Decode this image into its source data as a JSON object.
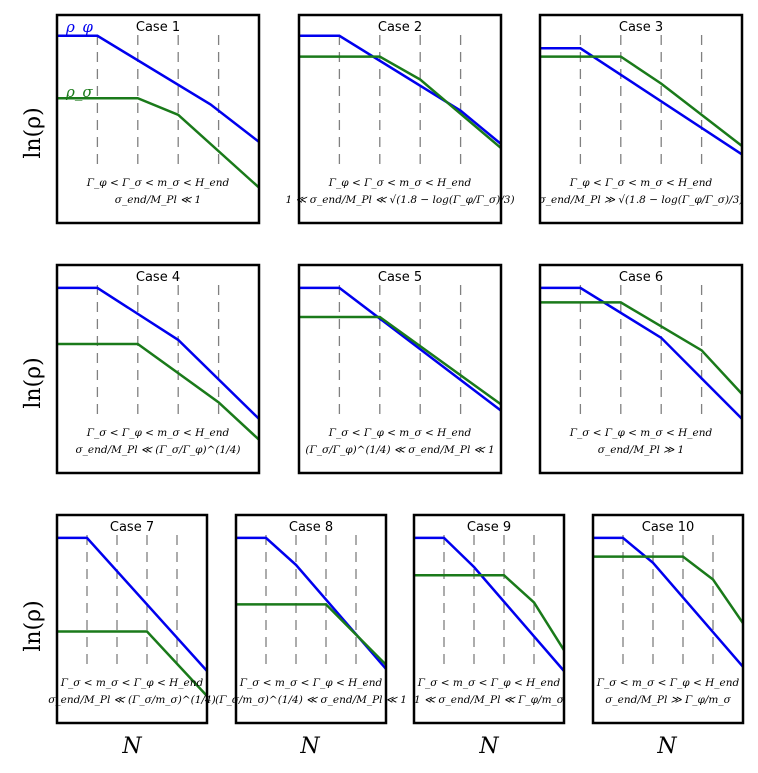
{
  "figure": {
    "y_axis_label": "ln(ρ)",
    "x_axis_label": "N",
    "legend": {
      "phi": "ρ_φ",
      "sigma": "ρ_σ"
    }
  },
  "colors": {
    "phi": "#0000ee",
    "sigma": "#1a7a1a",
    "dash": "#808080"
  },
  "chart_data": [
    {
      "type": "line",
      "title": "Case 1",
      "conditions": [
        "Γ_φ < Γ_σ < m_σ < H_end",
        "σ_end/M_Pl ≪ 1"
      ],
      "series": [
        {
          "name": "ρ_φ",
          "x": [
            0,
            0.2,
            0.76,
            1
          ],
          "y": [
            0.9,
            0.9,
            0.57,
            0.39
          ]
        },
        {
          "name": "ρ_σ",
          "x": [
            0,
            0.4,
            0.6,
            1
          ],
          "y": [
            0.6,
            0.6,
            0.52,
            0.17
          ]
        }
      ]
    },
    {
      "type": "line",
      "title": "Case 2",
      "conditions": [
        "Γ_φ < Γ_σ < m_σ < H_end",
        "1 ≪ σ_end/M_Pl ≪ √(1.8 − log(Γ_φ/Γ_σ)/3)"
      ],
      "series": [
        {
          "name": "ρ_φ",
          "x": [
            0,
            0.2,
            0.8,
            1
          ],
          "y": [
            0.9,
            0.9,
            0.54,
            0.38
          ]
        },
        {
          "name": "ρ_σ",
          "x": [
            0,
            0.4,
            0.6,
            1
          ],
          "y": [
            0.8,
            0.8,
            0.69,
            0.36
          ]
        }
      ]
    },
    {
      "type": "line",
      "title": "Case 3",
      "conditions": [
        "Γ_φ < Γ_σ < m_σ < H_end",
        "σ_end/M_Pl ≫ √(1.8 − log(Γ_φ/Γ_σ)/3)"
      ],
      "series": [
        {
          "name": "ρ_φ",
          "x": [
            0,
            0.2,
            1
          ],
          "y": [
            0.84,
            0.84,
            0.33
          ]
        },
        {
          "name": "ρ_σ",
          "x": [
            0,
            0.4,
            0.6,
            1
          ],
          "y": [
            0.8,
            0.8,
            0.67,
            0.37
          ]
        }
      ]
    },
    {
      "type": "line",
      "title": "Case 4",
      "conditions": [
        "Γ_σ < Γ_φ < m_σ < H_end",
        "σ_end/M_Pl ≪ (Γ_σ/Γ_φ)^(1/4)"
      ],
      "series": [
        {
          "name": "ρ_φ",
          "x": [
            0,
            0.2,
            0.6,
            1
          ],
          "y": [
            0.89,
            0.89,
            0.64,
            0.26
          ]
        },
        {
          "name": "ρ_σ",
          "x": [
            0,
            0.4,
            0.8,
            1
          ],
          "y": [
            0.62,
            0.62,
            0.34,
            0.16
          ]
        }
      ]
    },
    {
      "type": "line",
      "title": "Case 5",
      "conditions": [
        "Γ_σ < Γ_φ < m_σ < H_end",
        "(Γ_σ/Γ_φ)^(1/4) ≪ σ_end/M_Pl ≪ 1"
      ],
      "series": [
        {
          "name": "ρ_φ",
          "x": [
            0,
            0.2,
            1
          ],
          "y": [
            0.89,
            0.89,
            0.3
          ]
        },
        {
          "name": "ρ_σ",
          "x": [
            0,
            0.4,
            1
          ],
          "y": [
            0.75,
            0.75,
            0.33
          ]
        }
      ]
    },
    {
      "type": "line",
      "title": "Case 6",
      "conditions": [
        "Γ_σ < Γ_φ < m_σ < H_end",
        "σ_end/M_Pl ≫ 1"
      ],
      "series": [
        {
          "name": "ρ_φ",
          "x": [
            0,
            0.2,
            0.6,
            1
          ],
          "y": [
            0.89,
            0.89,
            0.65,
            0.26
          ]
        },
        {
          "name": "ρ_σ",
          "x": [
            0,
            0.4,
            0.8,
            1
          ],
          "y": [
            0.82,
            0.82,
            0.59,
            0.38
          ]
        }
      ]
    },
    {
      "type": "line",
      "title": "Case 7",
      "conditions": [
        "Γ_σ < m_σ < Γ_φ < H_end",
        "σ_end/M_Pl ≪ (Γ_σ/m_σ)^(1/4)"
      ],
      "series": [
        {
          "name": "ρ_φ",
          "x": [
            0,
            0.2,
            1
          ],
          "y": [
            0.89,
            0.89,
            0.25
          ]
        },
        {
          "name": "ρ_σ",
          "x": [
            0,
            0.6,
            1
          ],
          "y": [
            0.44,
            0.44,
            0.13
          ]
        }
      ]
    },
    {
      "type": "line",
      "title": "Case 8",
      "conditions": [
        "Γ_σ < m_σ < Γ_φ < H_end",
        "(Γ_σ/m_σ)^(1/4) ≪ σ_end/M_Pl ≪ 1"
      ],
      "series": [
        {
          "name": "ρ_φ",
          "x": [
            0,
            0.2,
            0.4,
            1
          ],
          "y": [
            0.89,
            0.89,
            0.76,
            0.26
          ]
        },
        {
          "name": "ρ_σ",
          "x": [
            0,
            0.6,
            1
          ],
          "y": [
            0.57,
            0.57,
            0.28
          ]
        }
      ]
    },
    {
      "type": "line",
      "title": "Case 9",
      "conditions": [
        "Γ_σ < m_σ < Γ_φ < H_end",
        "1 ≪ σ_end/M_Pl ≪ Γ_φ/m_σ"
      ],
      "series": [
        {
          "name": "ρ_φ",
          "x": [
            0,
            0.2,
            0.4,
            1
          ],
          "y": [
            0.89,
            0.89,
            0.75,
            0.25
          ]
        },
        {
          "name": "ρ_σ",
          "x": [
            0,
            0.6,
            0.8,
            1
          ],
          "y": [
            0.71,
            0.71,
            0.58,
            0.35
          ]
        }
      ]
    },
    {
      "type": "line",
      "title": "Case 10",
      "conditions": [
        "Γ_σ < m_σ < Γ_φ < H_end",
        "σ_end/M_Pl ≫ Γ_φ/m_σ"
      ],
      "series": [
        {
          "name": "ρ_φ",
          "x": [
            0,
            0.2,
            0.4,
            1
          ],
          "y": [
            0.89,
            0.89,
            0.77,
            0.27
          ]
        },
        {
          "name": "ρ_σ",
          "x": [
            0,
            0.6,
            0.8,
            1
          ],
          "y": [
            0.8,
            0.8,
            0.69,
            0.48
          ]
        }
      ]
    }
  ]
}
